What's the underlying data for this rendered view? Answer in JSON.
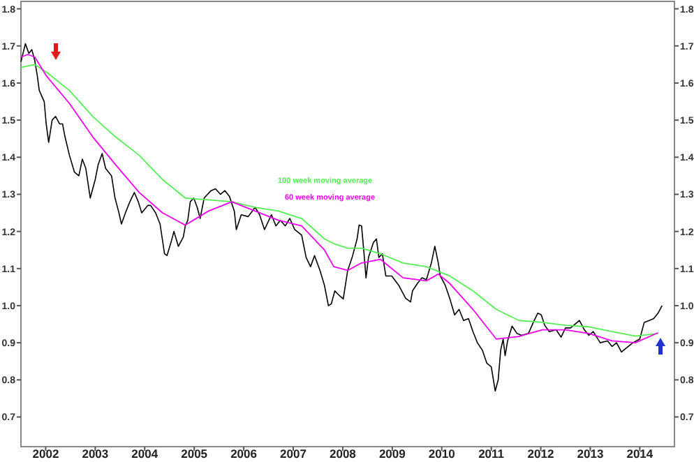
{
  "chart_data": {
    "type": "line",
    "xlim": [
      2002.0,
      2015.2
    ],
    "ylim": [
      0.62,
      1.82
    ],
    "y2lim": [
      0.62,
      1.82
    ],
    "xticks": [
      {
        "value": 2002.5,
        "label": "2002"
      },
      {
        "value": 2003.5,
        "label": "2003"
      },
      {
        "value": 2004.5,
        "label": "2004"
      },
      {
        "value": 2005.5,
        "label": "2005"
      },
      {
        "value": 2006.5,
        "label": "2006"
      },
      {
        "value": 2007.5,
        "label": "2007"
      },
      {
        "value": 2008.5,
        "label": "2008"
      },
      {
        "value": 2009.5,
        "label": "2009"
      },
      {
        "value": 2010.5,
        "label": "2010"
      },
      {
        "value": 2011.5,
        "label": "2011"
      },
      {
        "value": 2012.5,
        "label": "2012"
      },
      {
        "value": 2013.5,
        "label": "2013"
      },
      {
        "value": 2014.5,
        "label": "2014"
      }
    ],
    "yticks": [
      {
        "value": 0.7,
        "label": "0.7"
      },
      {
        "value": 0.8,
        "label": "0.8"
      },
      {
        "value": 0.9,
        "label": "0.9"
      },
      {
        "value": 1.0,
        "label": "1.0"
      },
      {
        "value": 1.1,
        "label": "1.1"
      },
      {
        "value": 1.2,
        "label": "1.2"
      },
      {
        "value": 1.3,
        "label": "1.3"
      },
      {
        "value": 1.4,
        "label": "1.4"
      },
      {
        "value": 1.5,
        "label": "1.5"
      },
      {
        "value": 1.6,
        "label": "1.6"
      },
      {
        "value": 1.7,
        "label": "1.7"
      },
      {
        "value": 1.8,
        "label": "1.8"
      }
    ],
    "y2ticks": [
      {
        "value": 0.7,
        "label": "0.7"
      },
      {
        "value": 0.8,
        "label": "0.8"
      },
      {
        "value": 0.9,
        "label": "0.9"
      },
      {
        "value": 1.0,
        "label": "1.0"
      },
      {
        "value": 1.1,
        "label": "1.1"
      },
      {
        "value": 1.2,
        "label": "1.2"
      },
      {
        "value": 1.3,
        "label": "1.3"
      },
      {
        "value": 1.4,
        "label": "1.4"
      },
      {
        "value": 1.5,
        "label": "1.5"
      },
      {
        "value": 1.6,
        "label": "1.6"
      },
      {
        "value": 1.7,
        "label": "1.7"
      },
      {
        "value": 1.8,
        "label": "1.8"
      }
    ],
    "grid": false,
    "marker": "none",
    "line_style": "solid",
    "series": [
      {
        "color": "#000000",
        "x": [
          2002.0,
          2002.09,
          2002.16,
          2002.22,
          2002.28,
          2002.33,
          2002.37,
          2002.47,
          2002.51,
          2002.56,
          2002.63,
          2002.7,
          2002.78,
          2002.84,
          2002.89,
          2002.98,
          2003.08,
          2003.17,
          2003.24,
          2003.31,
          2003.4,
          2003.5,
          2003.56,
          2003.64,
          2003.71,
          2003.83,
          2003.9,
          2003.97,
          2004.03,
          2004.11,
          2004.2,
          2004.29,
          2004.37,
          2004.44,
          2004.56,
          2004.62,
          2004.72,
          2004.81,
          2004.9,
          2004.95,
          2005.03,
          2005.09,
          2005.18,
          2005.28,
          2005.32,
          2005.37,
          2005.42,
          2005.49,
          2005.56,
          2005.62,
          2005.7,
          2005.84,
          2005.93,
          2006.03,
          2006.12,
          2006.21,
          2006.31,
          2006.35,
          2006.45,
          2006.59,
          2006.73,
          2006.82,
          2006.92,
          2007.06,
          2007.15,
          2007.24,
          2007.34,
          2007.43,
          2007.53,
          2007.67,
          2007.76,
          2007.85,
          2007.93,
          2008.04,
          2008.13,
          2008.21,
          2008.27,
          2008.34,
          2008.41,
          2008.51,
          2008.6,
          2008.69,
          2008.79,
          2008.83,
          2008.88,
          2008.93,
          2008.97,
          2009.02,
          2009.12,
          2009.18,
          2009.23,
          2009.3,
          2009.37,
          2009.49,
          2009.63,
          2009.77,
          2009.87,
          2009.91,
          2010.01,
          2010.1,
          2010.19,
          2010.29,
          2010.36,
          2010.43,
          2010.47,
          2010.57,
          2010.66,
          2010.76,
          2010.85,
          2010.94,
          2011.04,
          2011.13,
          2011.22,
          2011.32,
          2011.41,
          2011.5,
          2011.58,
          2011.64,
          2011.69,
          2011.74,
          2011.78,
          2011.83,
          2011.92,
          2012.02,
          2012.11,
          2012.25,
          2012.35,
          2012.44,
          2012.51,
          2012.58,
          2012.67,
          2012.81,
          2012.91,
          2013.0,
          2013.1,
          2013.19,
          2013.28,
          2013.38,
          2013.47,
          2013.56,
          2013.7,
          2013.85,
          2013.94,
          2014.03,
          2014.13,
          2014.22,
          2014.36,
          2014.5,
          2014.59,
          2014.69,
          2014.78,
          2014.87,
          2014.95
        ],
        "values": [
          1.657,
          1.706,
          1.68,
          1.69,
          1.66,
          1.62,
          1.58,
          1.55,
          1.49,
          1.44,
          1.5,
          1.51,
          1.49,
          1.49,
          1.455,
          1.405,
          1.36,
          1.35,
          1.395,
          1.37,
          1.29,
          1.34,
          1.38,
          1.41,
          1.37,
          1.35,
          1.29,
          1.255,
          1.22,
          1.25,
          1.28,
          1.305,
          1.28,
          1.25,
          1.27,
          1.27,
          1.25,
          1.22,
          1.14,
          1.135,
          1.17,
          1.2,
          1.16,
          1.185,
          1.215,
          1.23,
          1.28,
          1.29,
          1.265,
          1.235,
          1.29,
          1.31,
          1.315,
          1.3,
          1.31,
          1.295,
          1.255,
          1.205,
          1.245,
          1.24,
          1.265,
          1.245,
          1.205,
          1.245,
          1.215,
          1.23,
          1.215,
          1.235,
          1.205,
          1.19,
          1.13,
          1.105,
          1.135,
          1.095,
          1.055,
          1.0,
          1.005,
          1.04,
          1.03,
          1.018,
          1.095,
          1.13,
          1.18,
          1.217,
          1.215,
          1.14,
          1.075,
          1.13,
          1.17,
          1.18,
          1.13,
          1.14,
          1.08,
          1.08,
          1.055,
          1.02,
          1.01,
          1.04,
          1.06,
          1.075,
          1.07,
          1.115,
          1.16,
          1.115,
          1.08,
          1.055,
          1.02,
          0.975,
          0.99,
          0.96,
          0.965,
          0.93,
          0.9,
          0.88,
          0.845,
          0.835,
          0.77,
          0.8,
          0.88,
          0.91,
          0.865,
          0.905,
          0.945,
          0.925,
          0.92,
          0.925,
          0.955,
          0.98,
          0.975,
          0.947,
          0.93,
          0.935,
          0.915,
          0.94,
          0.94,
          0.95,
          0.96,
          0.935,
          0.92,
          0.93,
          0.9,
          0.905,
          0.89,
          0.9,
          0.875,
          0.885,
          0.9,
          0.91,
          0.955,
          0.96,
          0.965,
          0.98,
          1.0
        ]
      },
      {
        "name": "100 week moving average",
        "color": "#55ee55",
        "x": [
          2002.0,
          2002.28,
          2002.51,
          2002.98,
          2003.45,
          2003.91,
          2004.39,
          2004.86,
          2005.32,
          2005.79,
          2006.26,
          2006.73,
          2007.2,
          2007.67,
          2008.13,
          2008.32,
          2008.6,
          2008.88,
          2009.26,
          2009.72,
          2010.19,
          2010.66,
          2011.13,
          2011.6,
          2012.06,
          2012.53,
          2013.0,
          2013.47,
          2013.94,
          2014.41,
          2014.87
        ],
        "values": [
          1.642,
          1.65,
          1.63,
          1.58,
          1.51,
          1.455,
          1.405,
          1.34,
          1.29,
          1.285,
          1.28,
          1.265,
          1.255,
          1.235,
          1.18,
          1.167,
          1.155,
          1.155,
          1.14,
          1.115,
          1.105,
          1.08,
          1.04,
          0.99,
          0.96,
          0.955,
          0.947,
          0.943,
          0.93,
          0.918,
          0.925
        ]
      },
      {
        "name": "60 week moving average",
        "color": "#ee00ee",
        "x": [
          2002.0,
          2002.14,
          2002.28,
          2002.51,
          2002.98,
          2003.45,
          2003.91,
          2004.39,
          2004.86,
          2005.32,
          2005.79,
          2006.26,
          2006.73,
          2007.2,
          2007.67,
          2008.13,
          2008.32,
          2008.6,
          2008.88,
          2009.26,
          2009.72,
          2010.19,
          2010.43,
          2010.66,
          2011.13,
          2011.6,
          2012.06,
          2012.53,
          2013.0,
          2013.47,
          2013.94,
          2014.41,
          2014.87
        ],
        "values": [
          1.67,
          1.677,
          1.67,
          1.62,
          1.545,
          1.455,
          1.38,
          1.305,
          1.25,
          1.217,
          1.255,
          1.28,
          1.255,
          1.23,
          1.215,
          1.15,
          1.105,
          1.095,
          1.115,
          1.125,
          1.075,
          1.067,
          1.085,
          1.06,
          0.99,
          0.91,
          0.917,
          0.935,
          0.935,
          0.925,
          0.905,
          0.9,
          0.927
        ]
      }
    ]
  }
}
